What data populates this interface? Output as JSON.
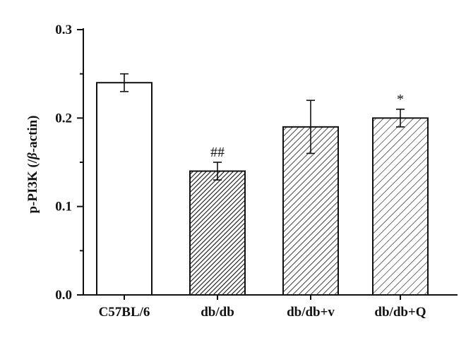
{
  "chart_data": {
    "type": "bar",
    "title": "",
    "xlabel": "",
    "ylabel": {
      "prefix": "p-PI3K (/",
      "italic": "β",
      "suffix": "-actin)"
    },
    "ylim": [
      0.0,
      0.3
    ],
    "yticks": [
      "0.0",
      "0.1",
      "0.2",
      "0.3"
    ],
    "categories": [
      "C57BL/6",
      "db/db",
      "db/db+v",
      "db/db+Q"
    ],
    "values": [
      0.24,
      0.14,
      0.19,
      0.2
    ],
    "errors": [
      0.01,
      0.01,
      0.03,
      0.01
    ],
    "annotations": [
      "",
      "##",
      "",
      "*"
    ],
    "fills": [
      "empty",
      "dense-hatch",
      "hatch",
      "sparse-hatch"
    ],
    "grid": false,
    "colors": {
      "stroke": "#111111",
      "fill": "#ffffff"
    }
  }
}
